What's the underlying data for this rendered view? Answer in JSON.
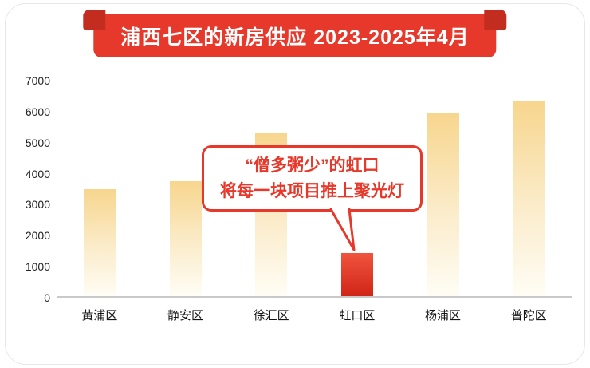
{
  "card": {
    "title": "浦西七区的新房供应 2023-2025年4月"
  },
  "annotation": {
    "line1": "“僧多粥少”的虹口",
    "line2": "将每一块项目推上聚光灯"
  },
  "chart_data": {
    "type": "bar",
    "title": "浦西七区的新房供应 2023-2025年4月",
    "categories": [
      "黄浦区",
      "静安区",
      "徐汇区",
      "虹口区",
      "杨浦区",
      "普陀区"
    ],
    "values": [
      3500,
      3750,
      5300,
      1400,
      5950,
      6350
    ],
    "highlight_index": 3,
    "highlight_label": "虹口区",
    "xlabel": "",
    "ylabel": "",
    "ylim": [
      0,
      7000
    ],
    "yticks": [
      7000,
      6000,
      5000,
      4000,
      3000,
      2000,
      1000,
      0
    ],
    "grid": "top-line-and-baseline-only",
    "legend": "none",
    "colors": {
      "accent_red": "#e6392c",
      "bar_gradient_top": "#f7d68e",
      "bar_gradient_bottom": "#fffdf5",
      "highlight_gradient_top": "#f0543f",
      "highlight_gradient_bottom": "#d02517"
    }
  }
}
